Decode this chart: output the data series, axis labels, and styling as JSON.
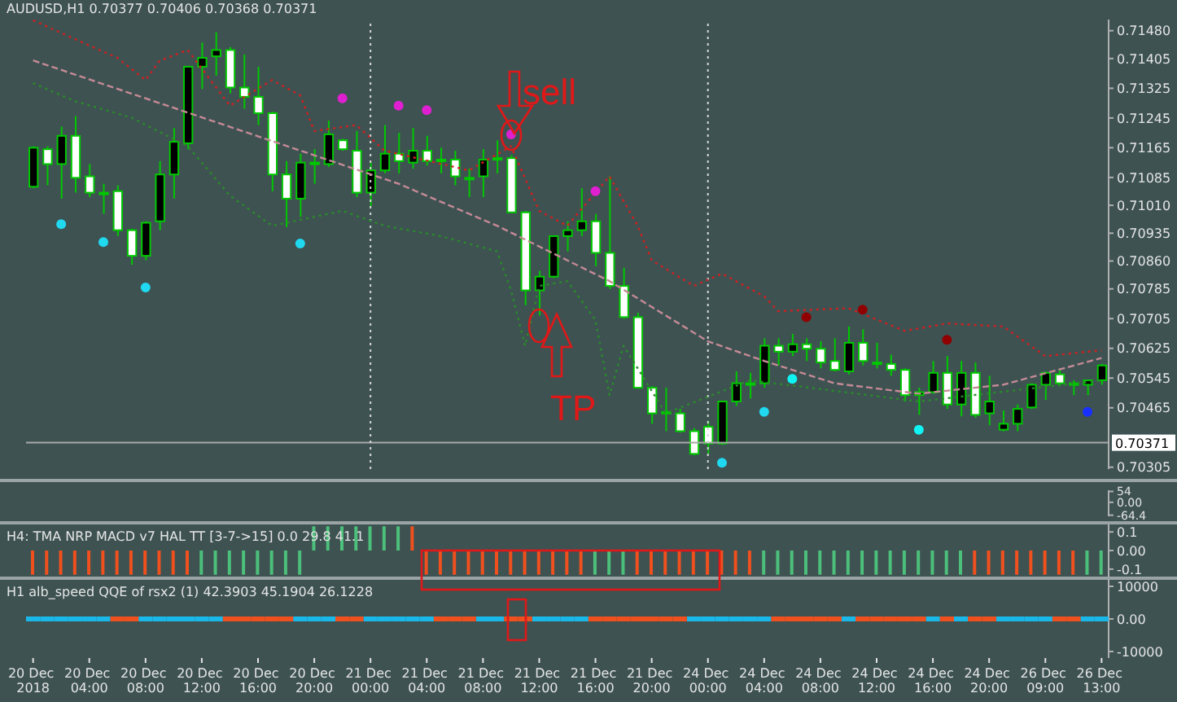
{
  "chart_data": [
    {
      "type": "candlestick",
      "title": "AUDUSD,H1  0.70377 0.70406 0.70368 0.70371",
      "color": "#00c800",
      "tick_labels": "y",
      "categories": [
        "20 Dec 2018",
        null,
        null,
        null,
        "20 Dec 04:00",
        null,
        null,
        null,
        "20 Dec 08:00",
        null,
        null,
        null,
        "20 Dec 12:00",
        null,
        null,
        null,
        "20 Dec 16:00",
        null,
        null,
        null,
        "20 Dec 20:00",
        null,
        null,
        null,
        "21 Dec 00:00",
        null,
        null,
        null,
        "21 Dec 04:00",
        null,
        null,
        null,
        "21 Dec 08:00",
        null,
        null,
        null,
        "21 Dec 12:00",
        null,
        null,
        null,
        "21 Dec 16:00",
        null,
        null,
        null,
        "21 Dec 20:00",
        null,
        null,
        null,
        "24 Dec 00:00",
        null,
        null,
        null,
        "24 Dec 04:00",
        null,
        null,
        null,
        "24 Dec 08:00",
        null,
        null,
        null,
        "24 Dec 12:00",
        null,
        null,
        null,
        "24 Dec 16:00",
        null,
        null,
        null,
        "24 Dec 20:00",
        null,
        null,
        null,
        "26 Dec 09:00",
        null,
        null,
        null,
        "26 Dec 13:00"
      ],
      "ohlc": [
        [
          0.7106,
          0.71169,
          0.71056,
          0.71165
        ],
        [
          0.71161,
          0.71169,
          0.71064,
          0.71121
        ],
        [
          0.71121,
          0.71222,
          0.71028,
          0.71197
        ],
        [
          0.71197,
          0.7125,
          0.71044,
          0.71084
        ],
        [
          0.71088,
          0.71121,
          0.71032,
          0.71044
        ],
        [
          0.71044,
          0.71068,
          0.70987,
          0.71044
        ],
        [
          0.71048,
          0.71064,
          0.70927,
          0.70943
        ],
        [
          0.70943,
          0.70947,
          0.7085,
          0.70874
        ],
        [
          0.70874,
          0.70967,
          0.70862,
          0.70963
        ],
        [
          0.70967,
          0.71129,
          0.70943,
          0.71093
        ],
        [
          0.71093,
          0.71218,
          0.71028,
          0.71181
        ],
        [
          0.71177,
          0.71383,
          0.71161,
          0.71383
        ],
        [
          0.71383,
          0.71448,
          0.71323,
          0.71407
        ],
        [
          0.71411,
          0.71476,
          0.71359,
          0.71428
        ],
        [
          0.71428,
          0.71436,
          0.71311,
          0.71327
        ],
        [
          0.71327,
          0.71416,
          0.7127,
          0.71302
        ],
        [
          0.71302,
          0.71383,
          0.71226,
          0.71258
        ],
        [
          0.71258,
          0.71262,
          0.71048,
          0.71093
        ],
        [
          0.71093,
          0.71129,
          0.70951,
          0.71028
        ],
        [
          0.71028,
          0.71149,
          0.70979,
          0.71125
        ],
        [
          0.71125,
          0.71161,
          0.71068,
          0.71125
        ],
        [
          0.71121,
          0.71238,
          0.71113,
          0.71201
        ],
        [
          0.71185,
          0.71189,
          0.71157,
          0.71161
        ],
        [
          0.71157,
          0.7121,
          0.71032,
          0.71044
        ],
        [
          0.71044,
          0.71125,
          0.71008,
          0.71104
        ],
        [
          0.71104,
          0.71226,
          0.71096,
          0.71149
        ],
        [
          0.71149,
          0.71205,
          0.71096,
          0.71129
        ],
        [
          0.71125,
          0.71218,
          0.71109,
          0.71157
        ],
        [
          0.71157,
          0.71197,
          0.71117,
          0.71129
        ],
        [
          0.71133,
          0.71165,
          0.71096,
          0.71133
        ],
        [
          0.71133,
          0.71157,
          0.71064,
          0.71088
        ],
        [
          0.71084,
          0.71109,
          0.71032,
          0.71084
        ],
        [
          0.71088,
          0.71161,
          0.71032,
          0.71133
        ],
        [
          0.71137,
          0.71185,
          0.71096,
          0.71137
        ],
        [
          0.71137,
          0.71145,
          0.70991,
          0.70991
        ],
        [
          0.70991,
          0.70995,
          0.70741,
          0.70781
        ],
        [
          0.70781,
          0.70834,
          0.70713,
          0.70818
        ],
        [
          0.70818,
          0.70927,
          0.70814,
          0.70927
        ],
        [
          0.70927,
          0.70967,
          0.70886,
          0.70943
        ],
        [
          0.70943,
          0.71056,
          0.70927,
          0.70967
        ],
        [
          0.70967,
          0.70987,
          0.70846,
          0.70882
        ],
        [
          0.70882,
          0.71088,
          0.70785,
          0.70793
        ],
        [
          0.70793,
          0.70842,
          0.70705,
          0.70709
        ],
        [
          0.70709,
          0.70721,
          0.70519,
          0.70519
        ],
        [
          0.70519,
          0.70523,
          0.70422,
          0.7045
        ],
        [
          0.70454,
          0.70519,
          0.70402,
          0.70454
        ],
        [
          0.7045,
          0.70462,
          0.70398,
          0.70402
        ],
        [
          0.70402,
          0.7041,
          0.70337,
          0.70341
        ],
        [
          0.70414,
          0.7043,
          0.70341,
          0.70369
        ],
        [
          0.70369,
          0.70482,
          0.70365,
          0.70482
        ],
        [
          0.70482,
          0.70563,
          0.7047,
          0.70531
        ],
        [
          0.70531,
          0.70559,
          0.7049,
          0.70531
        ],
        [
          0.70531,
          0.70652,
          0.70519,
          0.70632
        ],
        [
          0.70632,
          0.70652,
          0.70579,
          0.70616
        ],
        [
          0.70616,
          0.70664,
          0.70604,
          0.70636
        ],
        [
          0.70636,
          0.70652,
          0.70591,
          0.70624
        ],
        [
          0.70624,
          0.70644,
          0.70571,
          0.70587
        ],
        [
          0.70591,
          0.70652,
          0.70563,
          0.70567
        ],
        [
          0.70563,
          0.70684,
          0.70555,
          0.7064
        ],
        [
          0.7064,
          0.70676,
          0.70579,
          0.70591
        ],
        [
          0.70587,
          0.7064,
          0.70571,
          0.70587
        ],
        [
          0.70583,
          0.70608,
          0.70551,
          0.70567
        ],
        [
          0.70567,
          0.70571,
          0.70482,
          0.70499
        ],
        [
          0.70499,
          0.70519,
          0.70446,
          0.70507
        ],
        [
          0.70507,
          0.70591,
          0.70503,
          0.70559
        ],
        [
          0.70559,
          0.70604,
          0.70462,
          0.70474
        ],
        [
          0.70474,
          0.70591,
          0.70442,
          0.70559
        ],
        [
          0.70559,
          0.70587,
          0.70438,
          0.70446
        ],
        [
          0.7045,
          0.70551,
          0.70418,
          0.70482
        ],
        [
          0.70406,
          0.70458,
          0.70402,
          0.70422
        ],
        [
          0.70422,
          0.70474,
          0.70402,
          0.70462
        ],
        [
          0.70466,
          0.70531,
          0.70462,
          0.70527
        ],
        [
          0.70527,
          0.70563,
          0.70486,
          0.70559
        ],
        [
          0.70555,
          0.70567,
          0.70523,
          0.70531
        ],
        [
          0.70531,
          0.70539,
          0.70499,
          0.70531
        ],
        [
          0.70527,
          0.70539,
          0.70499,
          0.70539
        ],
        [
          0.70539,
          0.70583,
          0.70527,
          0.70579
        ]
      ],
      "series": [
        {
          "type": "line",
          "color": "#c48a96",
          "line_style": "dashed",
          "values": [
            0.714,
            null,
            null,
            null,
            null,
            null,
            null,
            null,
            null,
            null,
            null,
            null,
            null,
            0.71234,
            null,
            null,
            null,
            null,
            null,
            null,
            null,
            null,
            null,
            null,
            null,
            null,
            0.71068,
            null,
            null,
            null,
            null,
            null,
            null,
            0.70955,
            null,
            null,
            null,
            null,
            null,
            null,
            null,
            0.70806,
            null,
            null,
            null,
            null,
            null,
            null,
            0.70644,
            null,
            null,
            null,
            0.70591,
            null,
            null,
            null,
            null,
            0.70531,
            null,
            null,
            null,
            null,
            null,
            0.70503,
            null,
            null,
            null,
            null,
            null,
            0.70527,
            null,
            null,
            null,
            null,
            null,
            null,
            0.70599
          ]
        },
        {
          "type": "line",
          "color": "#d02020",
          "line_style": "dotted",
          "values": [
            0.71508,
            null,
            null,
            null,
            0.7144,
            null,
            0.71407,
            null,
            0.71347,
            0.71399,
            null,
            0.71428,
            null,
            null,
            0.71278,
            null,
            null,
            0.71347,
            null,
            0.71306,
            0.7121,
            null,
            null,
            0.71226,
            null,
            0.71157,
            null,
            null,
            null,
            null,
            null,
            0.71104,
            null,
            null,
            0.71169,
            null,
            0.70995,
            null,
            0.70955,
            null,
            null,
            0.71088,
            null,
            0.70955,
            0.70862,
            null,
            null,
            0.70793,
            null,
            0.70826,
            null,
            null,
            0.70765,
            0.70725,
            null,
            null,
            null,
            null,
            0.70733,
            null,
            null,
            null,
            0.70672,
            null,
            null,
            0.70692,
            null,
            null,
            null,
            0.70684,
            null,
            null,
            0.70604,
            null,
            null,
            null,
            0.7062
          ]
        },
        {
          "type": "line",
          "color": "#2a8a2a",
          "line_style": "dotted",
          "values": [
            0.71339,
            null,
            null,
            0.7129,
            null,
            null,
            null,
            0.71246,
            null,
            null,
            null,
            0.71169,
            null,
            null,
            0.71036,
            null,
            null,
            0.70955,
            null,
            null,
            null,
            null,
            0.70995,
            null,
            null,
            0.70955,
            null,
            null,
            null,
            0.70927,
            null,
            null,
            null,
            0.70886,
            0.70781,
            0.70632,
            0.70793,
            null,
            0.70806,
            null,
            0.70701,
            0.70499,
            0.70632,
            null,
            null,
            0.7045,
            null,
            null,
            null,
            null,
            null,
            0.70539,
            null,
            null,
            null,
            null,
            null,
            null,
            null,
            null,
            null,
            null,
            null,
            0.70482,
            null,
            null,
            null,
            null,
            null,
            null,
            null,
            null,
            null,
            null,
            null,
            null,
            0.70539
          ]
        },
        {
          "type": "scatter",
          "color": "#e020d0",
          "marker": "circle",
          "values": [
            null,
            null,
            null,
            null,
            null,
            null,
            null,
            null,
            null,
            null,
            null,
            null,
            null,
            null,
            null,
            null,
            null,
            null,
            null,
            null,
            null,
            null,
            0.71298,
            null,
            null,
            null,
            0.71278,
            null,
            0.71266,
            null,
            null,
            null,
            null,
            null,
            0.71201,
            null,
            null,
            null,
            null,
            null,
            0.71048,
            null,
            null,
            null,
            null,
            null,
            null,
            null,
            null,
            null,
            null,
            null,
            null,
            null,
            null,
            null,
            null,
            null,
            null,
            null,
            null,
            null,
            null,
            null,
            null,
            null,
            null,
            null,
            null,
            null,
            null,
            null,
            null,
            null,
            null,
            null,
            null
          ]
        },
        {
          "type": "scatter",
          "color": "#900000",
          "marker": "circle",
          "values": [
            null,
            null,
            null,
            null,
            null,
            null,
            null,
            null,
            null,
            null,
            null,
            null,
            null,
            null,
            null,
            null,
            null,
            null,
            null,
            null,
            null,
            null,
            null,
            null,
            null,
            null,
            null,
            null,
            null,
            null,
            null,
            null,
            null,
            null,
            null,
            null,
            null,
            null,
            null,
            null,
            null,
            null,
            null,
            null,
            null,
            null,
            null,
            null,
            null,
            null,
            null,
            null,
            null,
            null,
            null,
            0.70709,
            null,
            null,
            null,
            0.70729,
            null,
            null,
            null,
            null,
            null,
            0.70648,
            null,
            null,
            null,
            null,
            null,
            null,
            null,
            null,
            null,
            null,
            null
          ]
        },
        {
          "type": "scatter",
          "color": "#20d8f0",
          "marker": "circle",
          "values": [
            null,
            null,
            0.70959,
            null,
            null,
            0.70911,
            null,
            null,
            0.70789,
            null,
            null,
            null,
            null,
            null,
            null,
            null,
            null,
            null,
            null,
            0.70907,
            null,
            null,
            null,
            null,
            null,
            null,
            null,
            null,
            null,
            null,
            null,
            null,
            null,
            null,
            null,
            null,
            null,
            null,
            null,
            null,
            null,
            null,
            null,
            null,
            null,
            null,
            null,
            null,
            null,
            0.70317,
            null,
            null,
            0.70454,
            null,
            null,
            null,
            null,
            null,
            null,
            null,
            null,
            null,
            null,
            null,
            null,
            null,
            null,
            null,
            null,
            null,
            null,
            null,
            null,
            null,
            null,
            null,
            null
          ]
        },
        {
          "type": "scatter",
          "color": "#10f4f4",
          "marker": "circle",
          "values": [
            null,
            null,
            null,
            null,
            null,
            null,
            null,
            null,
            null,
            null,
            null,
            null,
            null,
            null,
            null,
            null,
            null,
            null,
            null,
            null,
            null,
            null,
            null,
            null,
            null,
            null,
            null,
            null,
            null,
            null,
            null,
            null,
            null,
            null,
            null,
            null,
            null,
            null,
            null,
            null,
            null,
            null,
            null,
            null,
            null,
            null,
            null,
            null,
            null,
            null,
            null,
            null,
            null,
            null,
            0.70543,
            null,
            null,
            null,
            null,
            null,
            null,
            null,
            null,
            0.70406,
            null,
            null,
            null,
            null,
            null,
            null,
            null,
            null,
            null,
            null,
            null,
            null,
            null
          ]
        },
        {
          "type": "scatter",
          "color": "#1830ff",
          "marker": "circle",
          "values": [
            null,
            null,
            null,
            null,
            null,
            null,
            null,
            null,
            null,
            null,
            null,
            null,
            null,
            null,
            null,
            null,
            null,
            null,
            null,
            null,
            null,
            null,
            null,
            null,
            null,
            null,
            null,
            null,
            null,
            null,
            null,
            null,
            null,
            null,
            null,
            null,
            null,
            null,
            null,
            null,
            null,
            null,
            null,
            null,
            null,
            null,
            null,
            null,
            null,
            null,
            null,
            null,
            null,
            null,
            null,
            null,
            null,
            null,
            null,
            null,
            null,
            null,
            null,
            null,
            null,
            null,
            null,
            null,
            null,
            null,
            null,
            null,
            null,
            null,
            null,
            0.70454,
            null
          ]
        }
      ],
      "ylim": [
        0.703,
        0.7151
      ],
      "yticks": [
        {
          "value": 0.7148,
          "label": "0.71480"
        },
        0.71405,
        0.71325,
        0.71245,
        0.71165,
        0.71085,
        {
          "value": 0.7101,
          "label": "0.71010"
        },
        0.70935,
        {
          "value": 0.7086,
          "label": "0.70860"
        },
        0.70785,
        0.70705,
        0.70625,
        0.70545,
        0.70465,
        0.70305
      ],
      "ref_lines": [
        {
          "axis": "y",
          "value": 0.70371,
          "label": "0.70371",
          "color": "#a8a8a8"
        },
        {
          "axis": "x",
          "value": "21 Dec 00:00",
          "color": "#d8d8d8",
          "line_style": "dotted"
        },
        {
          "axis": "x",
          "value": "24 Dec 00:00",
          "color": "#d8d8d8",
          "line_style": "dotted"
        }
      ],
      "annotations": [
        "sell",
        "TP"
      ]
    },
    {
      "type": "line",
      "tick_labels": "y",
      "categories": [
        "20 Dec 2018",
        null,
        null,
        null,
        "20 Dec 04:00",
        null,
        null,
        null,
        "20 Dec 08:00",
        null,
        null,
        null,
        "20 Dec 12:00",
        null,
        null,
        null,
        "20 Dec 16:00",
        null,
        null,
        null,
        "20 Dec 20:00",
        null,
        null,
        null,
        "21 Dec 00:00",
        null,
        null,
        null,
        "21 Dec 04:00",
        null,
        null,
        null,
        "21 Dec 08:00",
        null,
        null,
        null,
        "21 Dec 12:00",
        null,
        null,
        null,
        "21 Dec 16:00",
        null,
        null,
        null,
        "21 Dec 20:00",
        null,
        null,
        null,
        "24 Dec 00:00",
        null,
        null,
        null,
        "24 Dec 04:00",
        null,
        null,
        null,
        "24 Dec 08:00",
        null,
        null,
        null,
        "24 Dec 12:00",
        null,
        null,
        null,
        "24 Dec 16:00",
        null,
        null,
        null,
        "24 Dec 20:00",
        null,
        null,
        null,
        "26 Dec 09:00",
        null,
        null,
        null,
        "26 Dec 13:00"
      ],
      "ylim": [
        -70,
        60
      ],
      "yticks": [
        54,
        {
          "value": 0,
          "label": "0.00"
        },
        -64.4
      ]
    },
    {
      "type": "bar",
      "title": "H4: TMA NRP MACD v7 HAL TT [3-7->15] 0.0 29.8 41.1",
      "tick_labels": "y",
      "categories": [
        "20 Dec 2018",
        null,
        null,
        null,
        "20 Dec 04:00",
        null,
        null,
        null,
        "20 Dec 08:00",
        null,
        null,
        null,
        "20 Dec 12:00",
        null,
        null,
        null,
        "20 Dec 16:00",
        null,
        null,
        null,
        "20 Dec 20:00",
        null,
        null,
        null,
        "21 Dec 00:00",
        null,
        null,
        null,
        "21 Dec 04:00",
        null,
        null,
        null,
        "21 Dec 08:00",
        null,
        null,
        null,
        "21 Dec 12:00",
        null,
        null,
        null,
        "21 Dec 16:00",
        null,
        null,
        null,
        "21 Dec 20:00",
        null,
        null,
        null,
        "24 Dec 00:00",
        null,
        null,
        null,
        "24 Dec 04:00",
        null,
        null,
        null,
        "24 Dec 08:00",
        null,
        null,
        null,
        "24 Dec 12:00",
        null,
        null,
        null,
        "24 Dec 16:00",
        null,
        null,
        null,
        "24 Dec 20:00",
        null,
        null,
        null,
        "26 Dec 09:00",
        null,
        null,
        null,
        "26 Dec 13:00"
      ],
      "values": [
        -0.13,
        -0.13,
        -0.13,
        -0.13,
        -0.13,
        -0.13,
        -0.13,
        -0.13,
        -0.13,
        -0.13,
        -0.13,
        -0.13,
        -0.13,
        -0.13,
        -0.13,
        -0.13,
        -0.13,
        -0.13,
        -0.13,
        -0.13,
        0.13,
        0.13,
        0.13,
        0.13,
        0.13,
        0.13,
        0.13,
        0.13,
        -0.13,
        -0.13,
        -0.13,
        -0.13,
        -0.13,
        -0.13,
        -0.13,
        -0.13,
        -0.13,
        -0.13,
        -0.13,
        -0.13,
        -0.13,
        -0.13,
        -0.13,
        -0.13,
        -0.13,
        -0.13,
        -0.13,
        -0.13,
        -0.13,
        -0.13,
        -0.13,
        -0.13,
        -0.13,
        -0.13,
        -0.13,
        -0.13,
        -0.13,
        -0.13,
        -0.13,
        -0.13,
        -0.13,
        -0.13,
        -0.13,
        -0.13,
        -0.13,
        -0.13,
        -0.13,
        -0.13,
        -0.13,
        -0.13,
        -0.13,
        -0.13,
        -0.13,
        -0.13,
        -0.13,
        -0.13,
        -0.13
      ],
      "colors": [
        "#f0501e",
        "#f0501e",
        "#f0501e",
        "#f0501e",
        "#f0501e",
        "#f0501e",
        "#f0501e",
        "#f0501e",
        "#f0501e",
        "#f0501e",
        "#f0501e",
        "#f0501e",
        "#4cc07a",
        "#4cc07a",
        "#4cc07a",
        "#4cc07a",
        "#4cc07a",
        "#4cc07a",
        "#4cc07a",
        "#4cc07a",
        "#4cc07a",
        "#4cc07a",
        "#4cc07a",
        "#4cc07a",
        "#4cc07a",
        "#4cc07a",
        "#4cc07a",
        "#f0501e",
        "#f0501e",
        "#f0501e",
        "#f0501e",
        "#f0501e",
        "#f0501e",
        "#f0501e",
        "#f0501e",
        "#f0501e",
        "#f0501e",
        "#f0501e",
        "#f0501e",
        "#f0501e",
        "#4cc07a",
        "#4cc07a",
        "#4cc07a",
        "#f0501e",
        "#f0501e",
        "#f0501e",
        "#f0501e",
        "#f0501e",
        "#f0501e",
        "#f0501e",
        "#f0501e",
        "#f0501e",
        "#4cc07a",
        "#4cc07a",
        "#4cc07a",
        "#4cc07a",
        "#4cc07a",
        "#4cc07a",
        "#4cc07a",
        "#4cc07a",
        "#4cc07a",
        "#4cc07a",
        "#4cc07a",
        "#4cc07a",
        "#4cc07a",
        "#4cc07a",
        "#4cc07a",
        "#f0501e",
        "#f0501e",
        "#f0501e",
        "#f0501e",
        "#f0501e",
        "#f0501e",
        "#f0501e",
        "#f0501e",
        "#4cc07a",
        "#4cc07a"
      ],
      "ylim": [
        -0.14,
        0.14
      ],
      "yticks": [
        0.1,
        {
          "value": 0,
          "label": "0.00"
        },
        -0.1
      ]
    },
    {
      "type": "line",
      "title": "H1 alb_speed QQE of rsx2 (1) 42.3903 45.1904 26.1228",
      "categories": [
        "20 Dec 2018",
        null,
        null,
        null,
        "20 Dec 04:00",
        null,
        null,
        null,
        "20 Dec 08:00",
        null,
        null,
        null,
        "20 Dec 12:00",
        null,
        null,
        null,
        "20 Dec 16:00",
        null,
        null,
        null,
        "20 Dec 20:00",
        null,
        null,
        null,
        "21 Dec 00:00",
        null,
        null,
        null,
        "21 Dec 04:00",
        null,
        null,
        null,
        "21 Dec 08:00",
        null,
        null,
        null,
        "21 Dec 12:00",
        null,
        null,
        null,
        "21 Dec 16:00",
        null,
        null,
        null,
        "21 Dec 20:00",
        null,
        null,
        null,
        "24 Dec 00:00",
        null,
        null,
        null,
        "24 Dec 04:00",
        null,
        null,
        null,
        "24 Dec 08:00",
        null,
        null,
        null,
        "24 Dec 12:00",
        null,
        null,
        null,
        "24 Dec 16:00",
        null,
        null,
        null,
        "24 Dec 20:00",
        null,
        null,
        null,
        "26 Dec 09:00",
        null,
        null,
        null,
        "26 Dec 13:00"
      ],
      "series": [
        {
          "type": "scatter",
          "color": "#1ab8e8",
          "marker": "square",
          "values": [
            0,
            0,
            0,
            0,
            0,
            0,
            null,
            null,
            0,
            0,
            0,
            0,
            0,
            0,
            null,
            null,
            null,
            null,
            null,
            0,
            0,
            0,
            null,
            null,
            0,
            0,
            0,
            0,
            0,
            null,
            null,
            null,
            0,
            0,
            null,
            null,
            0,
            0,
            0,
            0,
            null,
            null,
            null,
            null,
            null,
            null,
            null,
            0,
            0,
            0,
            0,
            0,
            0,
            null,
            null,
            null,
            null,
            null,
            0,
            null,
            null,
            null,
            null,
            null,
            0,
            null,
            0,
            null,
            null,
            0,
            0,
            0,
            0,
            null,
            null,
            0,
            0
          ]
        },
        {
          "type": "scatter",
          "color": "#f0501e",
          "marker": "square",
          "values": [
            null,
            null,
            null,
            null,
            null,
            null,
            0,
            0,
            null,
            null,
            null,
            null,
            null,
            null,
            0,
            0,
            0,
            0,
            0,
            null,
            null,
            null,
            0,
            0,
            null,
            null,
            null,
            null,
            null,
            0,
            0,
            0,
            null,
            null,
            0,
            0,
            null,
            null,
            null,
            null,
            0,
            0,
            0,
            0,
            0,
            0,
            0,
            null,
            null,
            null,
            null,
            null,
            null,
            0,
            0,
            0,
            0,
            0,
            null,
            0,
            0,
            0,
            0,
            0,
            null,
            0,
            null,
            0,
            0,
            null,
            null,
            null,
            null,
            0,
            0,
            null,
            null
          ]
        }
      ],
      "ylim": [
        -12000,
        12000
      ],
      "yticks": [
        10000,
        {
          "value": 0,
          "label": "0.00"
        },
        -10000
      ]
    }
  ]
}
